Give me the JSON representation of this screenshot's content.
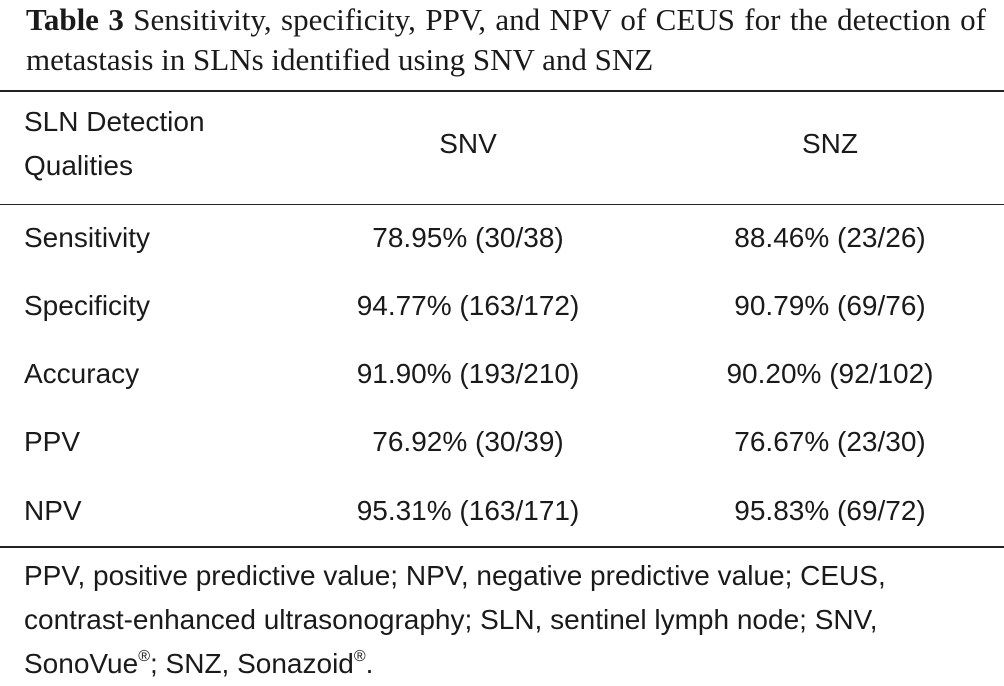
{
  "caption": {
    "label": "Table 3",
    "text": "Sensitivity, specificity, PPV, and NPV of CEUS for the detection of metastasis in SLNs identified using SNV and SNZ"
  },
  "table": {
    "headers": [
      "SLN Detection Qualities",
      "SNV",
      "SNZ"
    ],
    "rows": [
      [
        "Sensitivity",
        "78.95% (30/38)",
        "88.46% (23/26)"
      ],
      [
        "Specificity",
        "94.77% (163/172)",
        "90.79% (69/76)"
      ],
      [
        "Accuracy",
        "91.90% (193/210)",
        "90.20% (92/102)"
      ],
      [
        "PPV",
        "76.92% (30/39)",
        "76.67% (23/30)"
      ],
      [
        "NPV",
        "95.31% (163/171)",
        "95.83% (69/72)"
      ]
    ]
  },
  "footnote": {
    "text_1": "PPV, positive predictive value; NPV, negative predictive value; CEUS, contrast-enhanced ultrasonography; SLN, sentinel lymph node; SNV, SonoVue",
    "mark_1": "®",
    "text_2": "; SNZ, Sonazoid",
    "mark_2": "®",
    "text_3": "."
  }
}
